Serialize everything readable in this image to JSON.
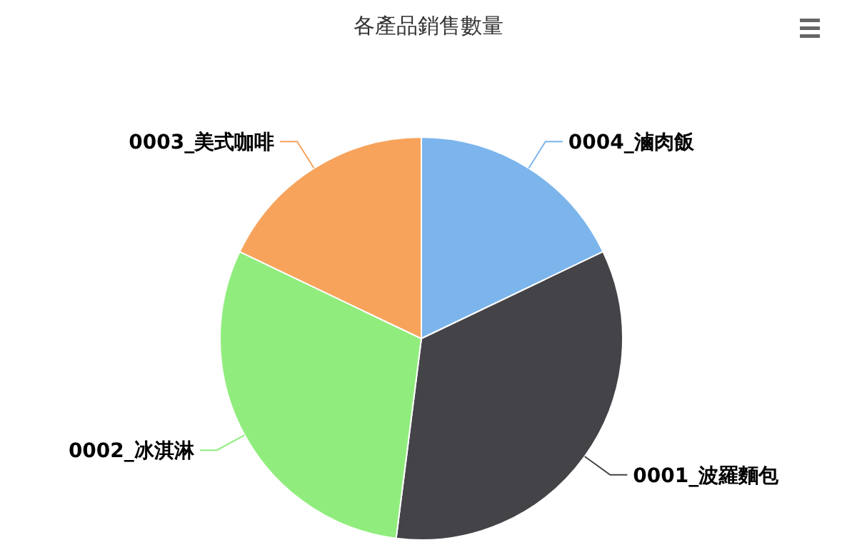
{
  "chart_data": {
    "type": "pie",
    "title": "各產品銷售數量",
    "categories": [
      "0004_滷肉飯",
      "0001_波羅麵包",
      "0002_冰淇淋",
      "0003_美式咖啡"
    ],
    "values": [
      17.9,
      34.1,
      30.1,
      17.9
    ],
    "colors": [
      "#7cb5ec",
      "#434348",
      "#90ed7d",
      "#f7a35c"
    ]
  }
}
